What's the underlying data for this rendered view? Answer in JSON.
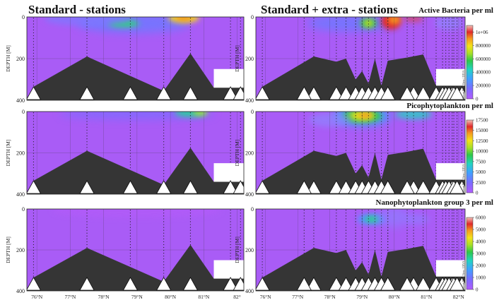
{
  "headings": {
    "left": "Standard - stations",
    "right": "Standard + extra - stations"
  },
  "chart_data": [
    {
      "type": "heatmap",
      "title": "Active Bacteria per ml",
      "ylabel": "DEPTH [M]",
      "yticks": [
        "0",
        "200",
        "400"
      ],
      "ylim": [
        0,
        400
      ],
      "xticks": [
        "76°N",
        "77°N",
        "78°N",
        "79°N",
        "80°N",
        "81°N",
        "82°"
      ],
      "colorbar": {
        "ticks": [
          "1e+06",
          "800000",
          "600000",
          "400000",
          "200000",
          "0"
        ],
        "range": [
          0,
          1100000
        ],
        "credit": "Ocean Data View / DIVA"
      }
    },
    {
      "type": "heatmap",
      "title": "Picophytoplankton per ml",
      "ylabel": "DEPTH [M]",
      "yticks": [
        "0",
        "200",
        "400"
      ],
      "ylim": [
        0,
        400
      ],
      "colorbar": {
        "ticks": [
          "17500",
          "15000",
          "12500",
          "10000",
          "7500",
          "5000",
          "2500",
          "0"
        ],
        "range": [
          0,
          17500
        ],
        "credit": "Ocean Data View / DIVA"
      }
    },
    {
      "type": "heatmap",
      "title": "Nanophytoplankton group 3 per ml",
      "ylabel": "DEPTH [M]",
      "yticks": [
        "0",
        "200",
        "400"
      ],
      "ylim": [
        0,
        400
      ],
      "xticks_left": [
        "76°N",
        "77°N",
        "78°N",
        "79°N",
        "80°N",
        "81°N",
        "82°"
      ],
      "xticks_right": [
        "76°N",
        "77°N",
        "78°N",
        "79°N",
        "80°N",
        "81°N",
        "82°N"
      ],
      "colorbar": {
        "ticks": [
          "6000",
          "5000",
          "4000",
          "3000",
          "2000",
          "1000",
          "0"
        ],
        "range": [
          0,
          6000
        ],
        "credit": "Ocean Data View / DIVA"
      }
    }
  ]
}
